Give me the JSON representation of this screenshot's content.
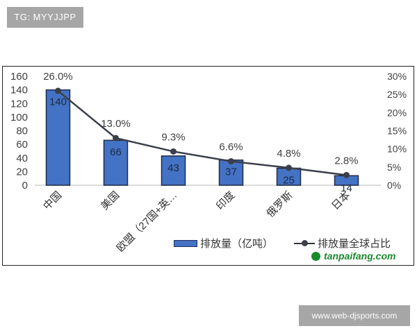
{
  "overlays": {
    "top_tag": "TG: MYYJJPP",
    "bottom_tag": "www.web-djsports.com",
    "watermark": "tanpaifang.com"
  },
  "legend": {
    "bar_label": "排放量（亿吨）",
    "line_label": "排放量全球占比"
  },
  "chart_data": {
    "type": "bar",
    "title": "",
    "categories": [
      "中国",
      "美国",
      "欧盟（27国+英…",
      "印度",
      "俄罗斯",
      "日本"
    ],
    "series": [
      {
        "name": "排放量（亿吨）",
        "type": "bar",
        "axis": "left",
        "values": [
          140,
          66,
          43,
          37,
          25,
          14
        ],
        "color": "#4472c4"
      },
      {
        "name": "排放量全球占比",
        "type": "line",
        "axis": "right",
        "values": [
          26.0,
          13.0,
          9.3,
          6.6,
          4.8,
          2.8
        ],
        "labels": [
          "26.0%",
          "13.0%",
          "9.3%",
          "6.6%",
          "4.8%",
          "2.8%"
        ],
        "color": "#3b3f4a"
      }
    ],
    "left_axis": {
      "ylim": [
        0,
        160
      ],
      "ticks": [
        "0",
        "20",
        "40",
        "60",
        "80",
        "100",
        "120",
        "140",
        "160"
      ]
    },
    "right_axis": {
      "ylim": [
        0,
        30
      ],
      "ticks": [
        "0%",
        "5%",
        "10%",
        "15%",
        "20%",
        "25%",
        "30%"
      ]
    },
    "xlabel": "",
    "ylabel": "",
    "grid": false,
    "legend_position": "bottom-right"
  }
}
